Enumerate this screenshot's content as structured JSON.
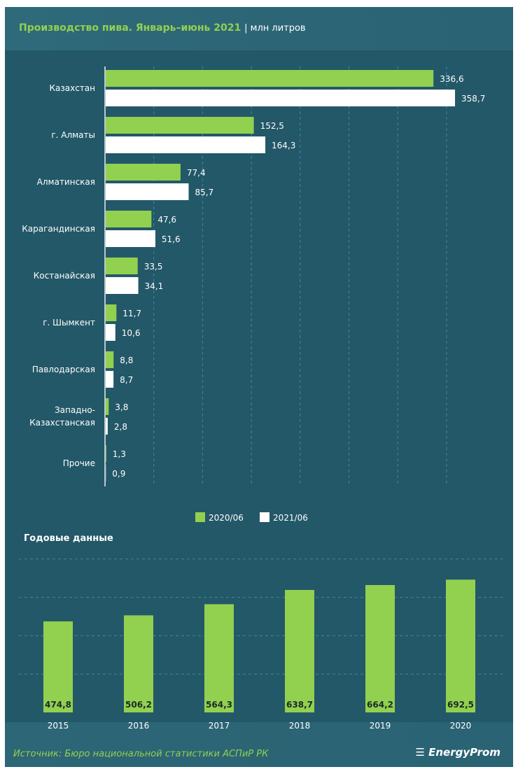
{
  "header": {
    "title": "Производство пива. Январь–июнь 2021",
    "units": "| млн литров"
  },
  "footer": {
    "source": "Источник: Бюро национальной  статистики АСПиР РК",
    "logo": "EnergyProm"
  },
  "colors": {
    "background": "#235868",
    "green": "#92d050",
    "white": "#ffffff"
  },
  "chart_data": [
    {
      "type": "bar",
      "orientation": "horizontal",
      "unit": "млн литров",
      "categories": [
        "Казахстан",
        "г. Алматы",
        "Алматинская",
        "Карагандинская",
        "Костанайская",
        "г. Шымкент",
        "Павлодарская",
        "Западно-Казахстанская",
        "Прочие"
      ],
      "category_lines": [
        [
          "Казахстан"
        ],
        [
          "г. Алматы"
        ],
        [
          "Алматинская"
        ],
        [
          "Карагандинская"
        ],
        [
          "Костанайская"
        ],
        [
          "г. Шымкент"
        ],
        [
          "Павлодарская"
        ],
        [
          "Западно-",
          "Казахстанская"
        ],
        [
          "Прочие"
        ]
      ],
      "series": [
        {
          "name": "2020/06",
          "color": "#92d050",
          "values": [
            336.6,
            152.5,
            77.4,
            47.6,
            33.5,
            11.7,
            8.8,
            3.8,
            1.3
          ],
          "labels": [
            "336,6",
            "152,5",
            "77,4",
            "47,6",
            "33,5",
            "11,7",
            "8,8",
            "3,8",
            "1,3"
          ]
        },
        {
          "name": "2021/06",
          "color": "#ffffff",
          "values": [
            358.7,
            164.3,
            85.7,
            51.6,
            34.1,
            10.6,
            8.7,
            2.8,
            0.9
          ],
          "labels": [
            "358,7",
            "164,3",
            "85,7",
            "51,6",
            "34,1",
            "10,6",
            "8,7",
            "2,8",
            "0,9"
          ]
        }
      ],
      "xlim": [
        0,
        350
      ],
      "grid": true,
      "legend": "bottom"
    },
    {
      "type": "bar",
      "title": "Годовые данные",
      "categories": [
        "2015",
        "2016",
        "2017",
        "2018",
        "2019",
        "2020"
      ],
      "values": [
        474.8,
        506.2,
        564.3,
        638.7,
        664.2,
        692.5
      ],
      "labels": [
        "474,8",
        "506,2",
        "564,3",
        "638,7",
        "664,2",
        "692,5"
      ],
      "color": "#92d050",
      "ylim": [
        0,
        800
      ],
      "grid": true
    }
  ]
}
